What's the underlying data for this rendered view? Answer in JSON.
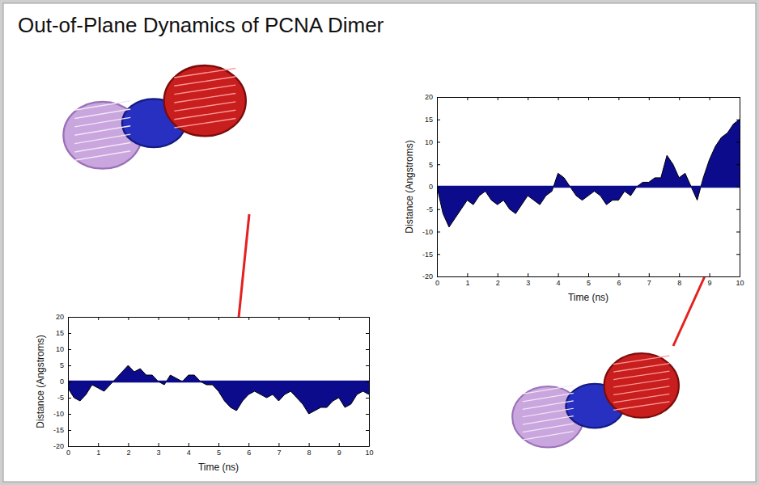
{
  "title": "Out-of-Plane Dynamics of PCNA Dimer",
  "chart_data": [
    {
      "type": "area",
      "xlabel": "Time (ns)",
      "ylabel": "Distance (Angstroms)",
      "color": "#0b0b8c",
      "x": [
        0,
        0.2,
        0.4,
        0.6,
        0.8,
        1.0,
        1.2,
        1.4,
        1.6,
        1.8,
        2.0,
        2.2,
        2.4,
        2.6,
        2.8,
        3.0,
        3.2,
        3.4,
        3.6,
        3.8,
        4.0,
        4.2,
        4.4,
        4.6,
        4.8,
        5.0,
        5.2,
        5.4,
        5.6,
        5.8,
        6.0,
        6.2,
        6.4,
        6.6,
        6.8,
        7.0,
        7.2,
        7.4,
        7.6,
        7.8,
        8.0,
        8.2,
        8.4,
        8.6,
        8.8,
        9.0,
        9.2,
        9.4,
        9.6,
        9.8,
        10
      ],
      "values": [
        -2,
        -5,
        -6,
        -4,
        -1,
        -2,
        -3,
        -1,
        1,
        3,
        5,
        3,
        4,
        2,
        2,
        0,
        -1,
        2,
        1,
        0,
        2,
        2,
        0,
        -1,
        -1,
        -3,
        -6,
        -8,
        -9,
        -6,
        -4,
        -3,
        -4,
        -5,
        -4,
        -6,
        -4,
        -3,
        -5,
        -7,
        -10,
        -9,
        -8,
        -8,
        -6,
        -5,
        -8,
        -7,
        -4,
        -3,
        -4
      ],
      "xlim": [
        0,
        10
      ],
      "ylim": [
        -20,
        20
      ],
      "xticks": [
        0,
        1,
        2,
        3,
        4,
        5,
        6,
        7,
        8,
        9,
        10
      ],
      "yticks": [
        -20,
        -15,
        -10,
        -5,
        0,
        5,
        10,
        15,
        20
      ]
    },
    {
      "type": "area",
      "xlabel": "Time (ns)",
      "ylabel": "Distance (Angstroms)",
      "color": "#0b0b8c",
      "x": [
        0,
        0.2,
        0.4,
        0.6,
        0.8,
        1.0,
        1.2,
        1.4,
        1.6,
        1.8,
        2.0,
        2.2,
        2.4,
        2.6,
        2.8,
        3.0,
        3.2,
        3.4,
        3.6,
        3.8,
        4.0,
        4.2,
        4.4,
        4.6,
        4.8,
        5.0,
        5.2,
        5.4,
        5.6,
        5.8,
        6.0,
        6.2,
        6.4,
        6.6,
        6.8,
        7.0,
        7.2,
        7.4,
        7.6,
        7.8,
        8.0,
        8.2,
        8.4,
        8.6,
        8.8,
        9.0,
        9.2,
        9.4,
        9.6,
        9.8,
        10
      ],
      "values": [
        0,
        -6,
        -9,
        -7,
        -5,
        -3,
        -4,
        -2,
        -1,
        -3,
        -4,
        -3,
        -5,
        -6,
        -4,
        -2,
        -3,
        -4,
        -2,
        -1,
        3,
        2,
        0,
        -2,
        -3,
        -2,
        -1,
        -2,
        -4,
        -3,
        -3,
        -1,
        -2,
        0,
        1,
        1,
        2,
        2,
        7,
        5,
        2,
        3,
        0,
        -3,
        2,
        6,
        9,
        11,
        12,
        14,
        15
      ],
      "xlim": [
        0,
        10
      ],
      "ylim": [
        -20,
        20
      ],
      "xticks": [
        0,
        1,
        2,
        3,
        4,
        5,
        6,
        7,
        8,
        9,
        10
      ],
      "yticks": [
        -20,
        -15,
        -10,
        -5,
        0,
        5,
        10,
        15,
        20
      ]
    }
  ]
}
